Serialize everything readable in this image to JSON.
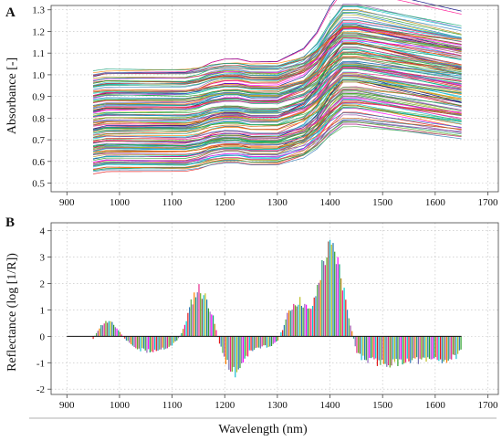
{
  "chart_data": [
    {
      "panel": "A",
      "type": "line",
      "ylabel": "Absorbance [-]",
      "xlim": [
        870,
        1720
      ],
      "ylim": [
        0.46,
        1.32
      ],
      "xticks": [
        900,
        1000,
        1100,
        1200,
        1300,
        1400,
        1500,
        1600,
        1700
      ],
      "yticks": [
        0.5,
        0.6,
        0.7,
        0.8,
        0.9,
        1.0,
        1.1,
        1.2,
        1.3
      ],
      "ytick_labels": [
        "0.5",
        "0.6",
        "0.7",
        "0.8",
        "0.9",
        "1.0",
        "1.1",
        "1.2",
        "1.3"
      ],
      "grid": true,
      "x_range": [
        950,
        1650
      ],
      "mean_spectrum": {
        "x": [
          950,
          975,
          1000,
          1025,
          1050,
          1075,
          1100,
          1125,
          1150,
          1175,
          1200,
          1225,
          1250,
          1275,
          1300,
          1325,
          1350,
          1375,
          1400,
          1425,
          1450,
          1475,
          1500,
          1525,
          1550,
          1575,
          1600,
          1625,
          1650
        ],
        "y": [
          0.79,
          0.8,
          0.8,
          0.8,
          0.8,
          0.8,
          0.8,
          0.8,
          0.81,
          0.83,
          0.84,
          0.84,
          0.83,
          0.83,
          0.83,
          0.85,
          0.87,
          0.92,
          1.0,
          1.06,
          1.06,
          1.05,
          1.04,
          1.03,
          1.02,
          1.01,
          1.0,
          0.99,
          0.98
        ]
      },
      "spectra_count": 150,
      "offset_range": [
        -0.24,
        0.22
      ],
      "band_scale_range": [
        0.6,
        1.5
      ],
      "colors": [
        "#e41a1c",
        "#377eb8",
        "#4daf4a",
        "#984ea3",
        "#ff7f00",
        "#1b9e77",
        "#d95f02",
        "#7570b3",
        "#e7298a",
        "#66a61e",
        "#00bcd4",
        "#8c564b",
        "#17becf",
        "#bcbd22",
        "#1f77b4",
        "#d62728",
        "#2ca02c",
        "#9467bd",
        "#ff00ff",
        "#00a86b",
        "#000080",
        "#b8860b",
        "#ff1493",
        "#00ced1"
      ]
    },
    {
      "panel": "B",
      "type": "bar",
      "ylabel": "Reflectance (log [1/R])",
      "xlabel": "Wavelength (nm)",
      "xlim": [
        870,
        1720
      ],
      "ylim": [
        -2.2,
        4.3
      ],
      "xticks": [
        900,
        1000,
        1100,
        1200,
        1300,
        1400,
        1500,
        1600,
        1700
      ],
      "yticks": [
        -2,
        -1,
        0,
        1,
        2,
        3,
        4
      ],
      "ytick_labels": [
        "-2",
        "-1",
        "0",
        "1",
        "2",
        "3",
        "4"
      ],
      "grid": true,
      "bar_step_nm": 3,
      "baseline_x_range": [
        900,
        1650
      ],
      "x": [
        950,
        960,
        970,
        980,
        990,
        1000,
        1010,
        1020,
        1030,
        1040,
        1050,
        1060,
        1070,
        1080,
        1090,
        1100,
        1110,
        1120,
        1130,
        1140,
        1150,
        1160,
        1170,
        1180,
        1190,
        1200,
        1210,
        1220,
        1230,
        1240,
        1250,
        1260,
        1270,
        1280,
        1290,
        1300,
        1310,
        1320,
        1330,
        1340,
        1350,
        1360,
        1370,
        1380,
        1390,
        1400,
        1410,
        1420,
        1430,
        1440,
        1450,
        1460,
        1470,
        1480,
        1490,
        1500,
        1510,
        1520,
        1530,
        1540,
        1550,
        1560,
        1570,
        1580,
        1590,
        1600,
        1610,
        1620,
        1630,
        1640,
        1650
      ],
      "values": [
        -0.1,
        0.3,
        0.55,
        0.6,
        0.45,
        0.2,
        -0.1,
        -0.3,
        -0.45,
        -0.55,
        -0.6,
        -0.6,
        -0.55,
        -0.5,
        -0.45,
        -0.35,
        -0.15,
        0.2,
        0.9,
        1.6,
        1.95,
        1.7,
        1.3,
        0.6,
        -0.3,
        -0.9,
        -1.3,
        -1.5,
        -1.2,
        -0.8,
        -0.6,
        -0.5,
        -0.45,
        -0.4,
        -0.35,
        -0.2,
        0.3,
        0.9,
        1.3,
        1.45,
        1.35,
        1.0,
        1.4,
        2.4,
        3.2,
        3.55,
        3.4,
        2.6,
        1.5,
        0.4,
        -0.6,
        -0.85,
        -0.95,
        -1.0,
        -1.05,
        -1.1,
        -1.1,
        -1.1,
        -1.05,
        -1.0,
        -0.95,
        -0.95,
        -1.0,
        -1.0,
        -0.95,
        -0.9,
        -0.95,
        -1.0,
        -0.9,
        -0.8,
        -0.6
      ],
      "colors": [
        "#e41a1c",
        "#377eb8",
        "#4daf4a",
        "#984ea3",
        "#ff7f00",
        "#1b9e77",
        "#7570b3",
        "#e7298a",
        "#66a61e",
        "#8c564b",
        "#17becf",
        "#bcbd22",
        "#1f77b4",
        "#2ca02c",
        "#9467bd",
        "#ff00ff",
        "#00a86b",
        "#b8860b",
        "#ff1493",
        "#00ced1"
      ]
    }
  ]
}
